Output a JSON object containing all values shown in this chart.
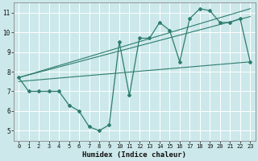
{
  "xlabel": "Humidex (Indice chaleur)",
  "ylabel": "",
  "xlim": [
    -0.5,
    23.5
  ],
  "ylim": [
    4.5,
    11.5
  ],
  "yticks": [
    5,
    6,
    7,
    8,
    9,
    10,
    11
  ],
  "xticks": [
    0,
    1,
    2,
    3,
    4,
    5,
    6,
    7,
    8,
    9,
    10,
    11,
    12,
    13,
    14,
    15,
    16,
    17,
    18,
    19,
    20,
    21,
    22,
    23
  ],
  "bg_color": "#cce8ea",
  "line_color": "#2e7d6e",
  "grid_color": "#ffffff",
  "line1_x": [
    0,
    1,
    2,
    3,
    4,
    5,
    6,
    7,
    8,
    9,
    10,
    11,
    12,
    13,
    14,
    15,
    16,
    17,
    18,
    19,
    20,
    21,
    22,
    23
  ],
  "line1_y": [
    7.7,
    7.0,
    7.0,
    7.0,
    7.0,
    6.3,
    6.0,
    5.2,
    5.0,
    5.3,
    9.5,
    6.8,
    9.7,
    9.7,
    10.5,
    10.1,
    8.5,
    10.7,
    11.2,
    11.1,
    10.5,
    10.5,
    10.7,
    8.5
  ],
  "line2_x": [
    0,
    23
  ],
  "line2_y": [
    7.5,
    8.5
  ],
  "line3_x": [
    0,
    23
  ],
  "line3_y": [
    7.7,
    10.8
  ],
  "line4_x": [
    0,
    23
  ],
  "line4_y": [
    7.7,
    11.2
  ]
}
